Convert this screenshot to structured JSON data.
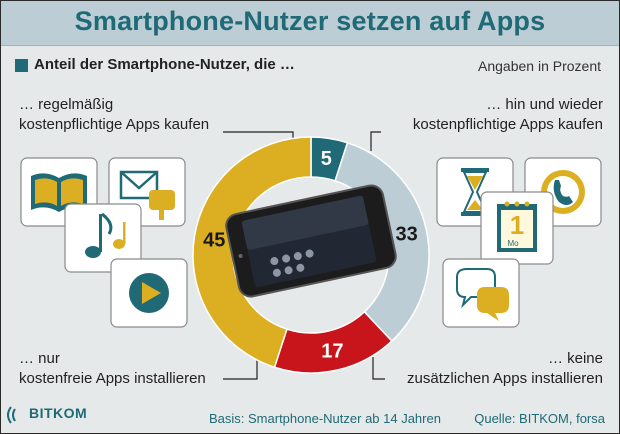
{
  "header": {
    "title": "Smartphone-Nutzer setzen auf Apps"
  },
  "legend": {
    "subtitle": "Anteil der Smartphone-Nutzer, die …",
    "units": "Angaben in Prozent"
  },
  "labels": {
    "top_left": [
      "… regelmäßig",
      "kostenpflichtige Apps kaufen"
    ],
    "top_right": [
      "… hin und wieder",
      "kostenpflichtige Apps kaufen"
    ],
    "bottom_left": [
      "… nur",
      "kostenfreie Apps installieren"
    ],
    "bottom_right": [
      "… keine",
      "zusätzlichen Apps installieren"
    ]
  },
  "footer": {
    "basis": "Basis: Smartphone-Nutzer ab 14 Jahren",
    "source": "Quelle: BITKOM, forsa",
    "logo": "BITKOM"
  },
  "icons": {
    "left": [
      "book-icon",
      "mail-icon",
      "music-note-icon",
      "play-icon"
    ],
    "right": [
      "hourglass-icon",
      "phone-icon",
      "calendar-icon",
      "chat-bubbles-icon"
    ]
  },
  "calendar_tile": {
    "day": "1",
    "weekday": "Mo"
  },
  "colors": {
    "teal": "#1f6a76",
    "blue_grey": "#bccdd5",
    "red": "#c8141b",
    "yellow": "#dcae21"
  },
  "chart_data": {
    "type": "pie",
    "title": "Smartphone-Nutzer setzen auf Apps",
    "unit": "Prozent",
    "slices": [
      {
        "label": "… regelmäßig kostenpflichtige Apps kaufen",
        "value": 5,
        "color": "#1f6a76"
      },
      {
        "label": "… hin und wieder kostenpflichtige Apps kaufen",
        "value": 33,
        "color": "#bccdd5"
      },
      {
        "label": "… keine zusätzlichen Apps installieren",
        "value": 17,
        "color": "#c8141b"
      },
      {
        "label": "… nur kostenfreie Apps installieren",
        "value": 45,
        "color": "#dcae21"
      }
    ],
    "labels_as_text": [
      "5",
      "33",
      "17",
      "45"
    ]
  }
}
